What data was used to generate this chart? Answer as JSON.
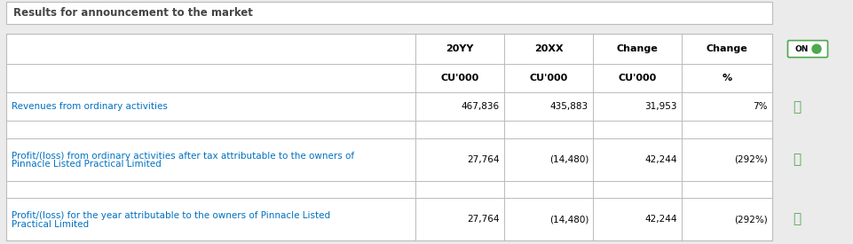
{
  "title": "Results for announcement to the market",
  "header_row1": [
    "",
    "20YY",
    "20XX",
    "Change",
    "Change"
  ],
  "header_row2": [
    "",
    "CU'000",
    "CU'000",
    "CU'000",
    "%"
  ],
  "rows": [
    {
      "label": "Revenues from ordinary activities",
      "col1": "467,836",
      "col2": "435,883",
      "col3": "31,953",
      "col4": "7%",
      "label_color": "#0070c0",
      "multiline": false
    },
    {
      "label": "Profit/(loss) from ordinary activities after tax attributable to the owners of\nPinnacle Listed Practical Limited",
      "col1": "27,764",
      "col2": "(14,480)",
      "col3": "42,244",
      "col4": "(292%)",
      "label_color": "#0070c0",
      "multiline": true
    },
    {
      "label": "Profit/(loss) for the year attributable to the owners of Pinnacle Listed\nPractical Limited",
      "col1": "27,764",
      "col2": "(14,480)",
      "col3": "42,244",
      "col4": "(292%)",
      "label_color": "#0070c0",
      "multiline": true
    }
  ],
  "bg_color": "#ebebeb",
  "table_bg": "#ffffff",
  "border_color": "#bbbbbb",
  "text_color": "#000000",
  "link_color": "#4ea84e",
  "title_color": "#444444",
  "on_border_color": "#4ea84e",
  "font_size": 7.5,
  "header_font_size": 8.0,
  "title_font_size": 8.5
}
